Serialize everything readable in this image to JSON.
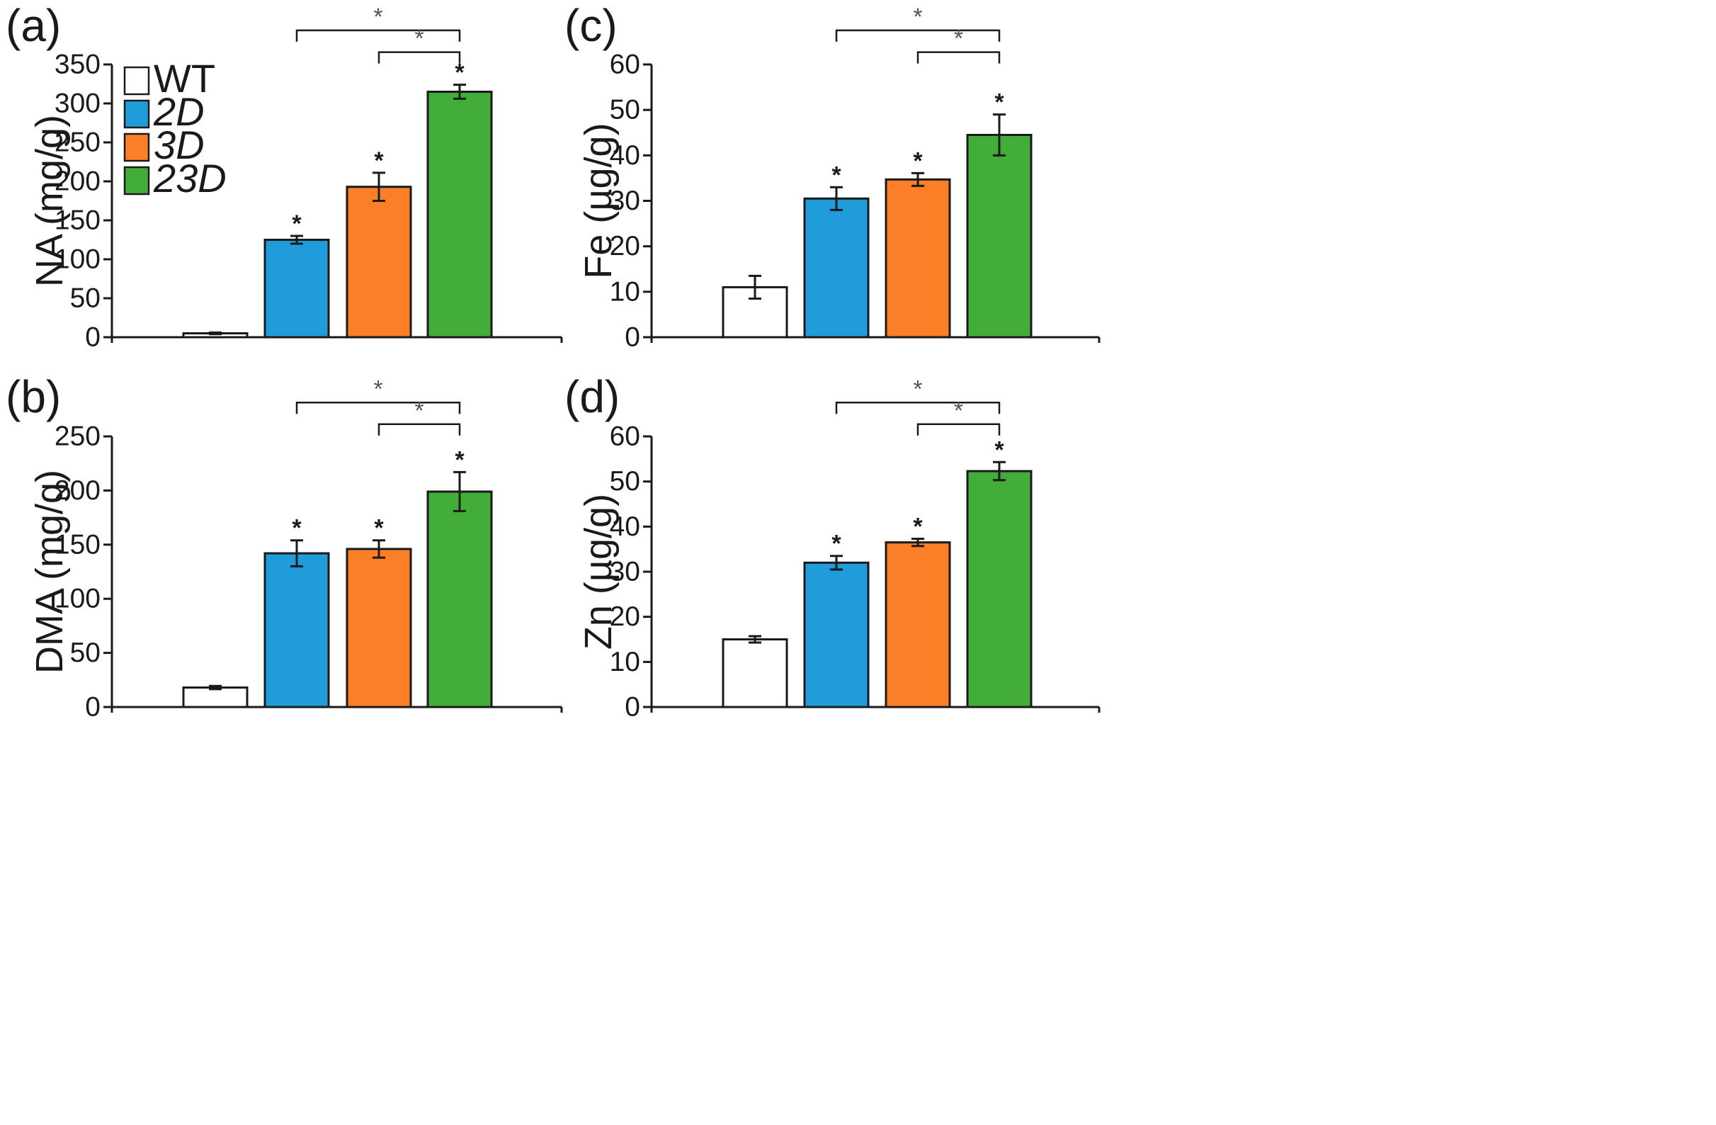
{
  "legend": {
    "entries": [
      {
        "label": "WT",
        "color": "#ffffff",
        "italic": false
      },
      {
        "label": "2D",
        "color": "#1f9cd9",
        "italic": true
      },
      {
        "label": "3D",
        "color": "#fa7f26",
        "italic": true
      },
      {
        "label": "23D",
        "color": "#43ad3a",
        "italic": true
      }
    ]
  },
  "chart_data": [
    {
      "panel": "(a)",
      "type": "bar",
      "categories": [
        "WT",
        "2D",
        "3D",
        "23D"
      ],
      "values": [
        5,
        125,
        193,
        315
      ],
      "errors": [
        1,
        5,
        18,
        9
      ],
      "significant": [
        false,
        true,
        true,
        true
      ],
      "ylabel": "NA (mg/g)",
      "ylim": [
        0,
        350
      ],
      "yticks": [
        0,
        50,
        100,
        150,
        200,
        250,
        300,
        350
      ],
      "brackets": [
        {
          "from": 1,
          "to": 3,
          "label": "*"
        },
        {
          "from": 2,
          "to": 3,
          "label": "*"
        }
      ]
    },
    {
      "panel": "(b)",
      "type": "bar",
      "categories": [
        "WT",
        "2D",
        "3D",
        "23D"
      ],
      "values": [
        18,
        142,
        146,
        199
      ],
      "errors": [
        1.5,
        12,
        8,
        18
      ],
      "significant": [
        false,
        true,
        true,
        true
      ],
      "ylabel": "DMA (mg/g)",
      "ylim": [
        0,
        250
      ],
      "yticks": [
        0,
        50,
        100,
        150,
        200,
        250
      ],
      "brackets": [
        {
          "from": 1,
          "to": 3,
          "label": "*"
        },
        {
          "from": 2,
          "to": 3,
          "label": "*"
        }
      ]
    },
    {
      "panel": "(c)",
      "type": "bar",
      "categories": [
        "WT",
        "2D",
        "3D",
        "23D"
      ],
      "values": [
        11,
        30.5,
        34.7,
        44.5
      ],
      "errors": [
        2.5,
        2.5,
        1.4,
        4.5
      ],
      "significant": [
        false,
        true,
        true,
        true
      ],
      "ylabel": "Fe (µg/g)",
      "ylim": [
        0,
        60
      ],
      "yticks": [
        0,
        10,
        20,
        30,
        40,
        50,
        60
      ],
      "brackets": [
        {
          "from": 1,
          "to": 3,
          "label": "*"
        },
        {
          "from": 2,
          "to": 3,
          "label": "*"
        }
      ]
    },
    {
      "panel": "(d)",
      "type": "bar",
      "categories": [
        "WT",
        "2D",
        "3D",
        "23D"
      ],
      "values": [
        15,
        32,
        36.5,
        52.3
      ],
      "errors": [
        0.7,
        1.5,
        0.8,
        2
      ],
      "significant": [
        false,
        true,
        true,
        true
      ],
      "ylabel": "Zn (µg/g)",
      "ylim": [
        0,
        60
      ],
      "yticks": [
        0,
        10,
        20,
        30,
        40,
        50,
        60
      ],
      "brackets": [
        {
          "from": 1,
          "to": 3,
          "label": "*"
        },
        {
          "from": 2,
          "to": 3,
          "label": "*"
        }
      ]
    }
  ]
}
